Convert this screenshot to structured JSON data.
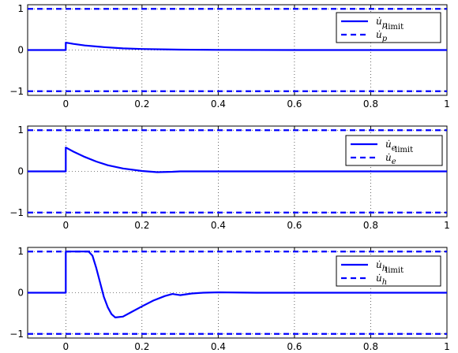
{
  "figure": {
    "background": "#ffffff",
    "line_color": "#0000ff",
    "grid": "dotted"
  },
  "chart_data": [
    {
      "type": "line",
      "xlim": [
        -0.1,
        1.0
      ],
      "ylim": [
        -1.1,
        1.1
      ],
      "x_ticks": [
        0,
        0.2,
        0.4,
        0.6,
        0.8,
        1
      ],
      "x_tick_labels": [
        "0",
        "0.2",
        "0.4",
        "0.6",
        "0.8",
        "1"
      ],
      "y_ticks": [
        -1,
        0,
        1
      ],
      "y_tick_labels": [
        "−1",
        "0",
        "1"
      ],
      "grid": true,
      "legend_position": "top-right",
      "series": [
        {
          "name": "u̇p",
          "style": "solid",
          "x": [
            -0.1,
            0.0,
            0.0,
            0.02,
            0.05,
            0.1,
            0.15,
            0.2,
            0.3,
            0.4,
            0.6,
            0.8,
            1.0
          ],
          "y": [
            0,
            0,
            0.18,
            0.15,
            0.11,
            0.07,
            0.04,
            0.025,
            0.01,
            0.004,
            0,
            0,
            0
          ]
        },
        {
          "name": "u̇p limit",
          "style": "dashed",
          "x": [
            -0.1,
            1.0
          ],
          "y": [
            1,
            1
          ],
          "y2": [
            -1,
            -1
          ]
        }
      ],
      "legend": {
        "main": "u̇",
        "sub": "p",
        "sup": "limit"
      }
    },
    {
      "type": "line",
      "xlim": [
        -0.1,
        1.0
      ],
      "ylim": [
        -1.1,
        1.1
      ],
      "x_ticks": [
        0,
        0.2,
        0.4,
        0.6,
        0.8,
        1
      ],
      "x_tick_labels": [
        "0",
        "0.2",
        "0.4",
        "0.6",
        "0.8",
        "1"
      ],
      "y_ticks": [
        -1,
        0,
        1
      ],
      "y_tick_labels": [
        "−1",
        "0",
        "1"
      ],
      "grid": true,
      "legend_position": "top-right",
      "series": [
        {
          "name": "u̇e",
          "style": "solid",
          "x": [
            -0.1,
            0.0,
            0.0,
            0.02,
            0.05,
            0.08,
            0.11,
            0.15,
            0.2,
            0.24,
            0.28,
            0.3,
            0.35,
            0.5,
            0.7,
            1.0
          ],
          "y": [
            0,
            0,
            0.58,
            0.48,
            0.35,
            0.24,
            0.15,
            0.07,
            0.01,
            -0.02,
            -0.01,
            0,
            0,
            0,
            0,
            0
          ]
        },
        {
          "name": "u̇e limit",
          "style": "dashed",
          "x": [
            -0.1,
            1.0
          ],
          "y": [
            1,
            1
          ],
          "y2": [
            -1,
            -1
          ]
        }
      ],
      "legend": {
        "main": "u̇",
        "sub": "e",
        "sup": "limit"
      }
    },
    {
      "type": "line",
      "xlim": [
        -0.1,
        1.0
      ],
      "ylim": [
        -1.1,
        1.1
      ],
      "x_ticks": [
        0,
        0.2,
        0.4,
        0.6,
        0.8,
        1
      ],
      "x_tick_labels": [
        "0",
        "0.2",
        "0.4",
        "0.6",
        "0.8",
        "1"
      ],
      "y_ticks": [
        -1,
        0,
        1
      ],
      "y_tick_labels": [
        "−1",
        "0",
        "1"
      ],
      "grid": true,
      "legend_position": "top-right",
      "series": [
        {
          "name": "u̇h",
          "style": "solid",
          "x": [
            -0.1,
            0.0,
            0.0,
            0.06,
            0.07,
            0.08,
            0.09,
            0.1,
            0.11,
            0.12,
            0.13,
            0.15,
            0.17,
            0.2,
            0.23,
            0.26,
            0.28,
            0.3,
            0.33,
            0.36,
            0.4,
            0.5,
            0.7,
            1.0
          ],
          "y": [
            0,
            0,
            1.0,
            1.0,
            0.9,
            0.6,
            0.25,
            -0.1,
            -0.35,
            -0.52,
            -0.6,
            -0.58,
            -0.48,
            -0.33,
            -0.19,
            -0.08,
            -0.03,
            -0.06,
            -0.02,
            0.0,
            0.01,
            0,
            0,
            0
          ]
        },
        {
          "name": "u̇h limit",
          "style": "dashed",
          "x": [
            -0.1,
            1.0
          ],
          "y": [
            1,
            1
          ],
          "y2": [
            -1,
            -1
          ]
        }
      ],
      "legend": {
        "main": "u̇",
        "sub": "h",
        "sup": "limit"
      }
    }
  ]
}
